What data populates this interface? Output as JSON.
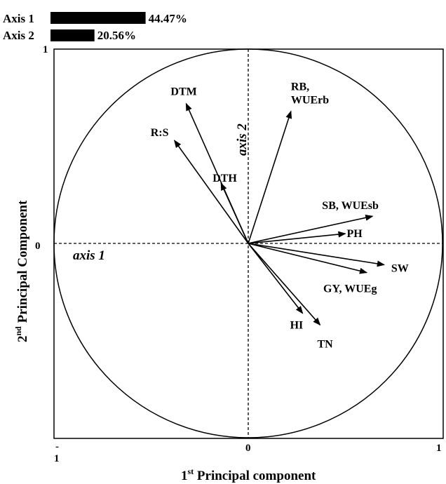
{
  "chart_data": {
    "type": "scatter",
    "title": "",
    "xlabel": {
      "base": "1",
      "sup": "st",
      "rest": " Principal component"
    },
    "ylabel": {
      "base": "2",
      "sup": "nd",
      "rest": " Principal Component"
    },
    "xlim": [
      -1,
      1
    ],
    "ylim": [
      -1,
      1
    ],
    "x_ticks": {
      "min": "-\n1",
      "min_top": "-",
      "min_bottom": "1",
      "mid": "0",
      "max": "1"
    },
    "y_ticks": {
      "max": "1",
      "mid": "0"
    },
    "axis_annotations": {
      "axis1": "axis 1",
      "axis2": "axis 2"
    },
    "explained_variance": [
      {
        "label": "Axis 1",
        "value": 44.47,
        "text": "44.47%"
      },
      {
        "label": "Axis 2",
        "value": 20.56,
        "text": "20.56%"
      }
    ],
    "vectors": [
      {
        "label": "DTM",
        "x": -0.32,
        "y": 0.72
      },
      {
        "label": "RB,",
        "label2": "WUErb",
        "x": 0.22,
        "y": 0.68
      },
      {
        "label": "R:S",
        "x": -0.38,
        "y": 0.53
      },
      {
        "label": "DTH",
        "x": -0.14,
        "y": 0.31
      },
      {
        "label": "SB, WUEsb",
        "x": 0.64,
        "y": 0.14
      },
      {
        "label": "PH",
        "x": 0.5,
        "y": 0.05
      },
      {
        "label": "SW",
        "x": 0.7,
        "y": -0.11
      },
      {
        "label": "GY, WUEg",
        "x": 0.61,
        "y": -0.15
      },
      {
        "label": "HI",
        "x": 0.28,
        "y": -0.36
      },
      {
        "label": "TN",
        "x": 0.37,
        "y": -0.42
      }
    ],
    "grid": false,
    "unit_circle": true
  }
}
